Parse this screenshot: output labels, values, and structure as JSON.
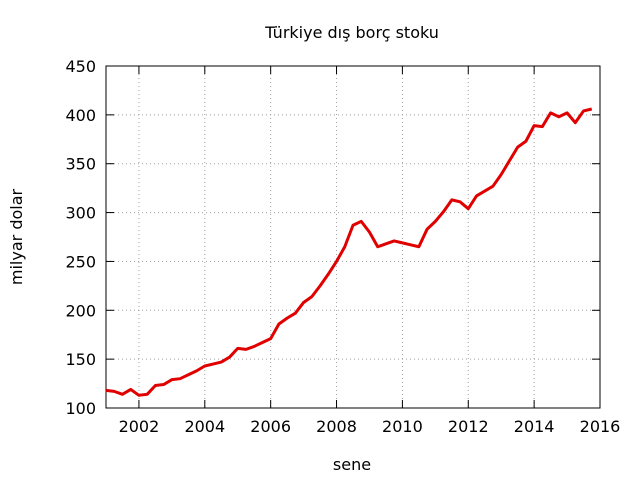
{
  "chart_data": {
    "type": "line",
    "title": "Türkiye dış borç stoku",
    "xlabel": "sene",
    "ylabel": "milyar dolar",
    "x": [
      2001,
      2001.25,
      2001.5,
      2001.75,
      2002,
      2002.25,
      2002.5,
      2002.75,
      2003,
      2003.25,
      2003.5,
      2003.75,
      2004,
      2004.25,
      2004.5,
      2004.75,
      2005,
      2005.25,
      2005.5,
      2005.75,
      2006,
      2006.25,
      2006.5,
      2006.75,
      2007,
      2007.25,
      2007.5,
      2007.75,
      2008,
      2008.25,
      2008.5,
      2008.75,
      2009,
      2009.25,
      2009.5,
      2009.75,
      2010,
      2010.25,
      2010.5,
      2010.75,
      2011,
      2011.25,
      2011.5,
      2011.75,
      2012,
      2012.25,
      2012.5,
      2012.75,
      2013,
      2013.25,
      2013.5,
      2013.75,
      2014,
      2014.25,
      2014.5,
      2014.75,
      2015,
      2015.25,
      2015.5,
      2015.75
    ],
    "series": [
      {
        "color": "#e00000",
        "values": [
          118,
          117,
          114,
          119,
          113,
          114,
          123,
          124,
          129,
          130,
          134,
          138,
          143,
          145,
          147,
          152,
          161,
          160,
          163,
          167,
          171,
          186,
          192,
          197,
          208,
          214,
          225,
          237,
          250,
          265,
          287,
          291,
          280,
          265,
          268,
          271,
          269,
          267,
          265,
          283,
          291,
          301,
          313,
          311,
          304,
          317,
          322,
          327,
          339,
          353,
          367,
          373,
          389,
          388,
          402,
          398,
          402,
          392,
          404,
          406
        ]
      }
    ],
    "xlim": [
      2001,
      2016
    ],
    "ylim": [
      100,
      450
    ],
    "xticks": [
      2002,
      2004,
      2006,
      2008,
      2010,
      2012,
      2014,
      2016
    ],
    "yticks": [
      100,
      150,
      200,
      250,
      300,
      350,
      400,
      450
    ],
    "grid": true
  }
}
